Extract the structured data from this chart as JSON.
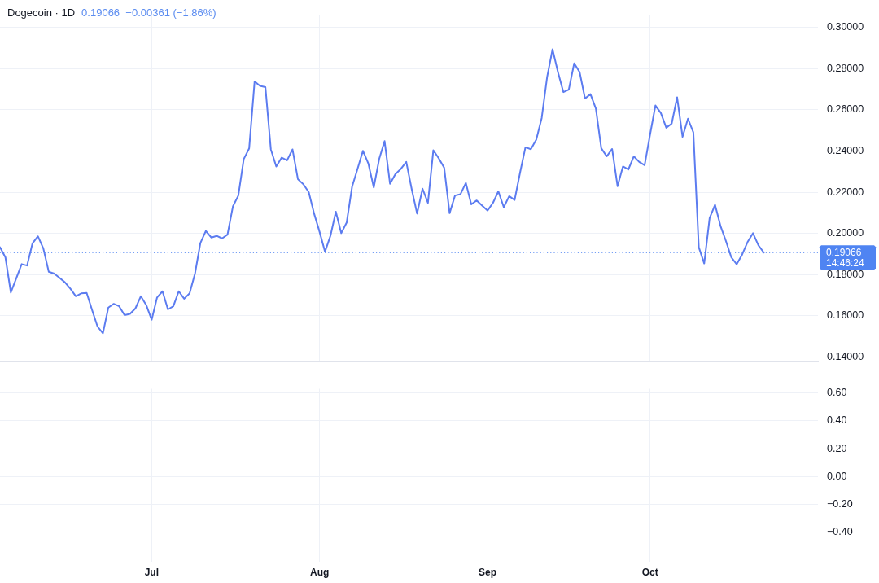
{
  "chart_data": [
    {
      "type": "line",
      "title": "Dogecoin · 1D",
      "subtitle": "0.19066  −0.00361 (−1.86%)",
      "x": [
        "--06-03",
        "--06-04",
        "--06-05",
        "--06-06",
        "--06-07",
        "--06-08",
        "--06-09",
        "--06-10",
        "--06-11",
        "--06-12",
        "--06-13",
        "--06-14",
        "--06-15",
        "--06-16",
        "--06-17",
        "--06-18",
        "--06-19",
        "--06-20",
        "--06-21",
        "--06-22",
        "--06-23",
        "--06-24",
        "--06-25",
        "--06-26",
        "--06-27",
        "--06-28",
        "--06-29",
        "--06-30",
        "--07-01",
        "--07-02",
        "--07-03",
        "--07-04",
        "--07-05",
        "--07-06",
        "--07-07",
        "--07-08",
        "--07-09",
        "--07-10",
        "--07-11",
        "--07-12",
        "--07-13",
        "--07-14",
        "--07-15",
        "--07-16",
        "--07-17",
        "--07-18",
        "--07-19",
        "--07-20",
        "--07-21",
        "--07-22",
        "--07-23",
        "--07-24",
        "--07-25",
        "--07-26",
        "--07-27",
        "--07-28",
        "--07-29",
        "--07-30",
        "--07-31",
        "--08-01",
        "--08-02",
        "--08-03",
        "--08-04",
        "--08-05",
        "--08-06",
        "--08-07",
        "--08-08",
        "--08-09",
        "--08-10",
        "--08-11",
        "--08-12",
        "--08-13",
        "--08-14",
        "--08-15",
        "--08-16",
        "--08-17",
        "--08-18",
        "--08-19",
        "--08-20",
        "--08-21",
        "--08-22",
        "--08-23",
        "--08-24",
        "--08-25",
        "--08-26",
        "--08-27",
        "--08-28",
        "--08-29",
        "--08-30",
        "--08-31",
        "--09-01",
        "--09-02",
        "--09-03",
        "--09-04",
        "--09-05",
        "--09-06",
        "--09-07",
        "--09-08",
        "--09-09",
        "--09-10",
        "--09-11",
        "--09-12",
        "--09-13",
        "--09-14",
        "--09-15",
        "--09-16",
        "--09-17",
        "--09-18",
        "--09-19",
        "--09-20",
        "--09-21",
        "--09-22",
        "--09-23",
        "--09-24",
        "--09-25",
        "--09-26",
        "--09-27",
        "--09-28",
        "--09-29",
        "--09-30",
        "--10-01",
        "--10-02",
        "--10-03",
        "--10-04",
        "--10-05",
        "--10-06",
        "--10-07",
        "--10-08",
        "--10-09",
        "--10-10",
        "--10-11",
        "--10-12",
        "--10-13",
        "--10-14",
        "--10-15",
        "--10-16",
        "--10-17",
        "--10-18",
        "--10-19",
        "--10-20",
        "--10-21",
        "--10-22"
      ],
      "series": [
        {
          "color": "#5c7cf0",
          "values": [
            0.1933,
            0.1884,
            0.1713,
            0.1782,
            0.1851,
            0.1844,
            0.1952,
            0.1986,
            0.1927,
            0.1814,
            0.1805,
            0.1784,
            0.1762,
            0.1731,
            0.1695,
            0.1709,
            0.1711,
            0.1628,
            0.1548,
            0.1515,
            0.164,
            0.1658,
            0.1646,
            0.1603,
            0.1609,
            0.1636,
            0.1695,
            0.1652,
            0.1581,
            0.1689,
            0.1719,
            0.1631,
            0.1646,
            0.1719,
            0.1683,
            0.1709,
            0.1805,
            0.1954,
            0.2012,
            0.198,
            0.1988,
            0.1976,
            0.1994,
            0.2131,
            0.2184,
            0.2361,
            0.2413,
            0.2738,
            0.2716,
            0.271,
            0.2408,
            0.2325,
            0.2368,
            0.2355,
            0.2408,
            0.2263,
            0.2239,
            0.22,
            0.2095,
            0.2007,
            0.1911,
            0.1988,
            0.2105,
            0.2001,
            0.2053,
            0.2227,
            0.2313,
            0.2401,
            0.2339,
            0.2223,
            0.2361,
            0.2448,
            0.2241,
            0.2288,
            0.2313,
            0.2347,
            0.2215,
            0.2096,
            0.2217,
            0.2148,
            0.2404,
            0.2364,
            0.2319,
            0.2098,
            0.2184,
            0.219,
            0.2245,
            0.2141,
            0.216,
            0.2135,
            0.2111,
            0.2148,
            0.2204,
            0.2127,
            0.2181,
            0.2162,
            0.2294,
            0.2418,
            0.2409,
            0.2455,
            0.256,
            0.2759,
            0.2894,
            0.2783,
            0.2686,
            0.2698,
            0.2826,
            0.2783,
            0.2655,
            0.2676,
            0.2606,
            0.2413,
            0.2374,
            0.241,
            0.2229,
            0.2325,
            0.231,
            0.2374,
            0.2347,
            0.2331,
            0.2479,
            0.2621,
            0.2584,
            0.2513,
            0.2533,
            0.2661,
            0.2469,
            0.2557,
            0.249,
            0.1933,
            0.1854,
            0.2074,
            0.2139,
            0.2037,
            0.1964,
            0.1884,
            0.185,
            0.1897,
            0.1958,
            0.2001,
            0.1943,
            0.19066
          ]
        }
      ],
      "xlim": [
        "--06-03",
        "--11-01"
      ],
      "xticks": [
        {
          "value": "--07-01",
          "label": null
        },
        {
          "value": "--08-01",
          "label": null
        },
        {
          "value": "--09-01",
          "label": null
        },
        {
          "value": "--10-01",
          "label": null
        }
      ],
      "ylim": [
        0.138,
        0.306
      ],
      "yticks": [
        {
          "value": 0.14,
          "label": "0.14000"
        },
        {
          "value": 0.16,
          "label": "0.16000"
        },
        {
          "value": 0.18,
          "label": "0.18000"
        },
        {
          "value": 0.2,
          "label": "0.20000"
        },
        {
          "value": 0.22,
          "label": "0.22000"
        },
        {
          "value": 0.24,
          "label": "0.24000"
        },
        {
          "value": 0.26,
          "label": "0.26000"
        },
        {
          "value": 0.28,
          "label": "0.28000"
        },
        {
          "value": 0.3,
          "label": "0.30000"
        }
      ],
      "grid": true,
      "tick_labels": "y",
      "ref_lines": [
        {
          "axis": "y",
          "value": 0.19066,
          "label": "0.19066",
          "color": "#4f84f2",
          "line_style": "dotted"
        }
      ],
      "annotations": [
        "14:46:24"
      ]
    },
    {
      "type": "line",
      "xlim": [
        "--06-03",
        "--11-01"
      ],
      "xticks": [
        {
          "value": "--07-01",
          "label": "Jul"
        },
        {
          "value": "--08-01",
          "label": "Aug"
        },
        {
          "value": "--09-01",
          "label": "Sep"
        },
        {
          "value": "--10-01",
          "label": "Oct"
        }
      ],
      "ylim": [
        -0.61,
        0.63
      ],
      "yticks": [
        {
          "value": -0.4,
          "label": "−0.40"
        },
        {
          "value": -0.2,
          "label": "−0.20"
        },
        {
          "value": 0,
          "label": "0.00"
        },
        {
          "value": 0.2,
          "label": "0.20"
        },
        {
          "value": 0.4,
          "label": "0.40"
        },
        {
          "value": 0.6,
          "label": "0.60"
        }
      ],
      "grid": true
    }
  ]
}
